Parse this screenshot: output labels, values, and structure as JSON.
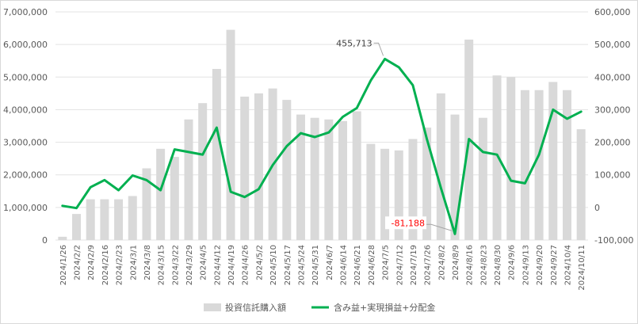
{
  "chart_data": {
    "type": "bar",
    "categories": [
      "2024/1/26",
      "2024/2/2",
      "2024/2/9",
      "2024/2/16",
      "2024/2/23",
      "2024/3/1",
      "2024/3/8",
      "2024/3/15",
      "2024/3/22",
      "2024/3/29",
      "2024/4/5",
      "2024/4/12",
      "2024/4/19",
      "2024/4/26",
      "2024/5/2",
      "2024/5/10",
      "2024/5/17",
      "2024/5/24",
      "2024/5/31",
      "2024/6/7",
      "2024/6/14",
      "2024/6/21",
      "2024/6/28",
      "2024/7/5",
      "2024/7/12",
      "2024/7/19",
      "2024/7/26",
      "2024/8/2",
      "2024/8/9",
      "2024/8/16",
      "2024/8/23",
      "2024/8/30",
      "2024/9/6",
      "2024/9/13",
      "2024/9/20",
      "2024/9/27",
      "2024/10/4",
      "2024/10/11"
    ],
    "series": [
      {
        "name": "投資信託購入額",
        "type": "bar",
        "axis": "left",
        "color": "#d9d9d9",
        "values": [
          100000,
          800000,
          1250000,
          1250000,
          1250000,
          1350000,
          2200000,
          2800000,
          2550000,
          3700000,
          4200000,
          5250000,
          6450000,
          4400000,
          4500000,
          4650000,
          4300000,
          3850000,
          3750000,
          3700000,
          3650000,
          3950000,
          2950000,
          2800000,
          2750000,
          3100000,
          3450000,
          4500000,
          3850000,
          6150000,
          3750000,
          5050000,
          5000000,
          4600000,
          4600000,
          4850000,
          4600000,
          3400000
        ]
      },
      {
        "name": "含み益+実現損益+分配金",
        "type": "line",
        "axis": "right",
        "color": "#00b050",
        "values": [
          5000,
          -2000,
          62000,
          84000,
          53000,
          98000,
          84000,
          53000,
          178000,
          170000,
          162000,
          245000,
          48000,
          32000,
          56000,
          130000,
          188000,
          228000,
          216000,
          230000,
          278000,
          305000,
          390000,
          455713,
          430000,
          375000,
          210000,
          60000,
          -81188,
          210000,
          170000,
          162000,
          82000,
          74000,
          162000,
          300000,
          272000,
          294000
        ]
      }
    ],
    "y_left": {
      "min": 0,
      "max": 7000000,
      "ticks": [
        "0",
        "1,000,000",
        "2,000,000",
        "3,000,000",
        "4,000,000",
        "5,000,000",
        "6,000,000",
        "7,000,000"
      ]
    },
    "y_right": {
      "min": -100000,
      "max": 600000,
      "ticks": [
        "-100,000",
        "0",
        "100,000",
        "200,000",
        "300,000",
        "400,000",
        "500,000",
        "600,000"
      ],
      "negative_tick_color": "#ff0000"
    },
    "grid": true,
    "legend_position": "bottom",
    "annotations": [
      {
        "label": "455,713",
        "index": 23,
        "color": "#404040"
      },
      {
        "label": "-81,188",
        "index": 28,
        "color": "#ff0000"
      }
    ]
  }
}
